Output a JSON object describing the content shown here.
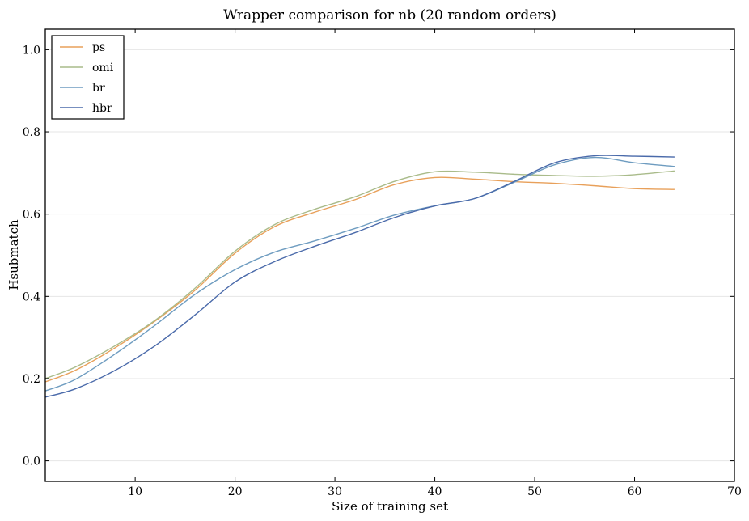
{
  "chart_data": {
    "type": "line",
    "title": "Wrapper comparison for nb (20 random orders)",
    "xlabel": "Size of training set",
    "ylabel": "Hsubmatch",
    "xlim": [
      1,
      70
    ],
    "ylim": [
      -0.05,
      1.05
    ],
    "xticks": [
      10,
      20,
      30,
      40,
      50,
      60,
      70
    ],
    "yticks": [
      0.0,
      0.2,
      0.4,
      0.6,
      0.8,
      1.0
    ],
    "grid": "horizontal",
    "legend": "top-left",
    "x": [
      1,
      4,
      8,
      12,
      16,
      20,
      24,
      28,
      32,
      36,
      40,
      44,
      48,
      52,
      56,
      60,
      64
    ],
    "series": [
      {
        "name": "ps",
        "color": "#e8a05a",
        "values": [
          0.192,
          0.22,
          0.275,
          0.34,
          0.415,
          0.505,
          0.57,
          0.605,
          0.635,
          0.672,
          0.689,
          0.685,
          0.679,
          0.675,
          0.669,
          0.662,
          0.66
        ]
      },
      {
        "name": "omi",
        "color": "#a9bb8a",
        "values": [
          0.2,
          0.228,
          0.28,
          0.342,
          0.42,
          0.51,
          0.575,
          0.612,
          0.642,
          0.68,
          0.703,
          0.702,
          0.697,
          0.694,
          0.692,
          0.696,
          0.705
        ]
      },
      {
        "name": "br",
        "color": "#6e9cc0",
        "values": [
          0.17,
          0.198,
          0.26,
          0.33,
          0.405,
          0.465,
          0.508,
          0.535,
          0.565,
          0.598,
          0.62,
          0.638,
          0.678,
          0.72,
          0.738,
          0.725,
          0.716
        ]
      },
      {
        "name": "hbr",
        "color": "#4a6aaa",
        "values": [
          0.155,
          0.175,
          0.22,
          0.28,
          0.355,
          0.435,
          0.485,
          0.522,
          0.555,
          0.592,
          0.62,
          0.638,
          0.68,
          0.725,
          0.742,
          0.741,
          0.739
        ]
      }
    ]
  }
}
